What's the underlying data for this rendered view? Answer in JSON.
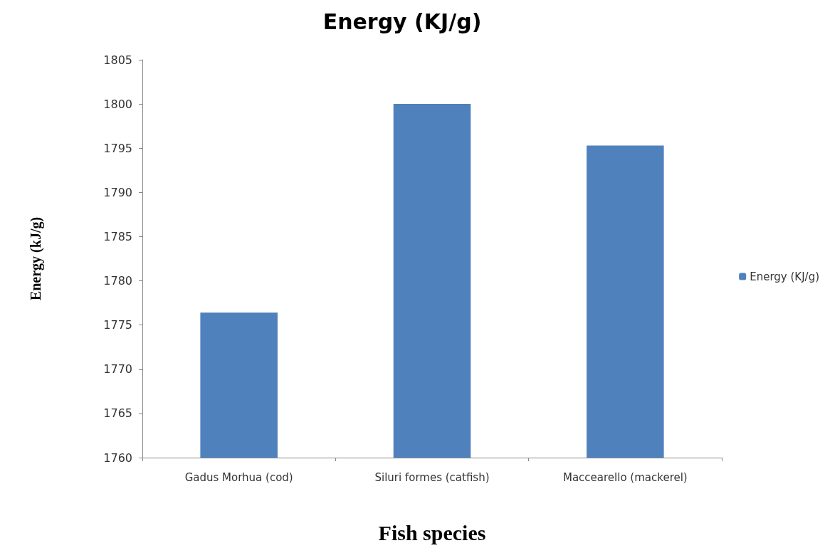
{
  "chart_data": {
    "type": "bar",
    "title": "Energy (KJ/g)",
    "xlabel": "Fish species",
    "ylabel": "Energy (kJ/g)",
    "categories": [
      "Gadus Morhua (cod)",
      "Siluri formes (catfish)",
      "Maccearello (mackerel)"
    ],
    "series": [
      {
        "name": "Energy (KJ/g)",
        "color": "#4f81bd",
        "values": [
          1776.4,
          1800,
          1795.3
        ]
      }
    ],
    "ylim": [
      1760,
      1805
    ],
    "yticks": [
      1760,
      1765,
      1770,
      1775,
      1780,
      1785,
      1790,
      1795,
      1800,
      1805
    ],
    "grid": false,
    "legend": "right"
  }
}
